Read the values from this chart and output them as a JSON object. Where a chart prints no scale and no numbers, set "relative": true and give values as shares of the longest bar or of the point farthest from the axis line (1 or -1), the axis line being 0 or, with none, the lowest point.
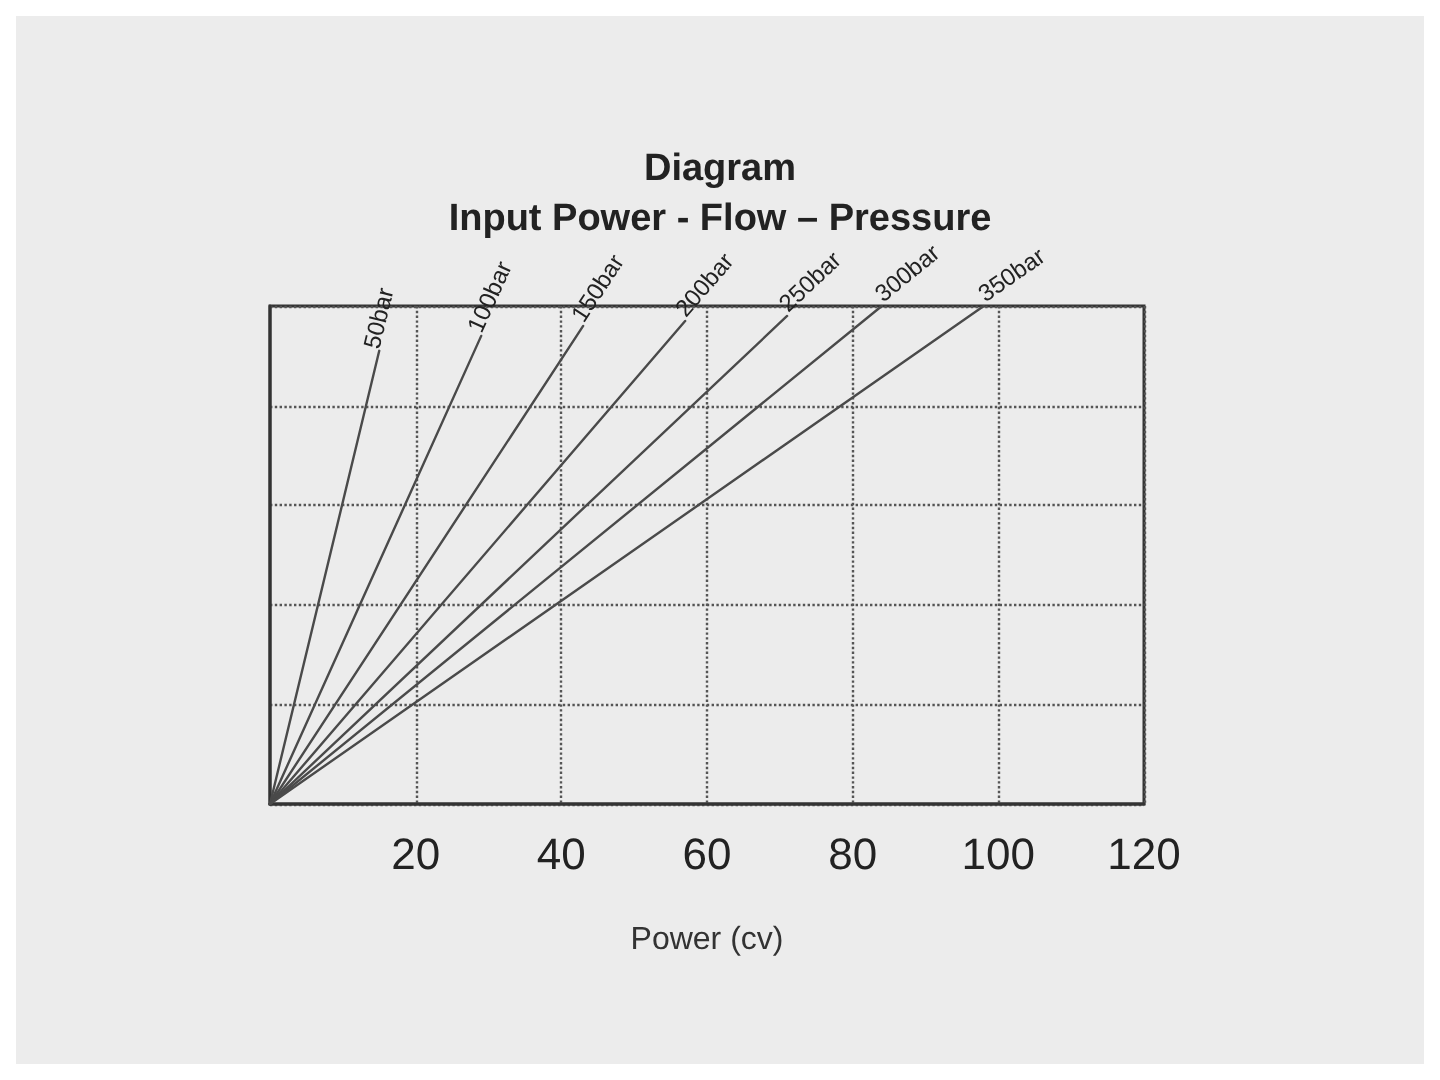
{
  "chart_data": {
    "type": "line",
    "title": "Diagram",
    "subtitle": "Input Power - Flow – Pressure",
    "xlabel": "Power (cv)",
    "relative": true,
    "xlim": [
      0,
      120
    ],
    "xticks": [
      20,
      40,
      60,
      80,
      100,
      120
    ],
    "grid": true,
    "legend": false,
    "marker": "none",
    "line_style": "solid",
    "series": [
      {
        "name": "50bar",
        "color": "#4a4a4a",
        "x": [
          0,
          15
        ],
        "values": [
          0,
          0.91
        ]
      },
      {
        "name": "100bar",
        "color": "#4a4a4a",
        "x": [
          0,
          29
        ],
        "values": [
          0,
          0.94
        ]
      },
      {
        "name": "150bar",
        "color": "#4a4a4a",
        "x": [
          0,
          43
        ],
        "values": [
          0,
          0.96
        ]
      },
      {
        "name": "200bar",
        "color": "#4a4a4a",
        "x": [
          0,
          57
        ],
        "values": [
          0,
          0.97
        ]
      },
      {
        "name": "250bar",
        "color": "#4a4a4a",
        "x": [
          0,
          71
        ],
        "values": [
          0,
          0.98
        ]
      },
      {
        "name": "300bar",
        "color": "#4a4a4a",
        "x": [
          0,
          84
        ],
        "values": [
          0,
          1
        ]
      },
      {
        "name": "350bar",
        "color": "#4a4a4a",
        "x": [
          0,
          98
        ],
        "values": [
          0,
          1
        ]
      }
    ]
  }
}
